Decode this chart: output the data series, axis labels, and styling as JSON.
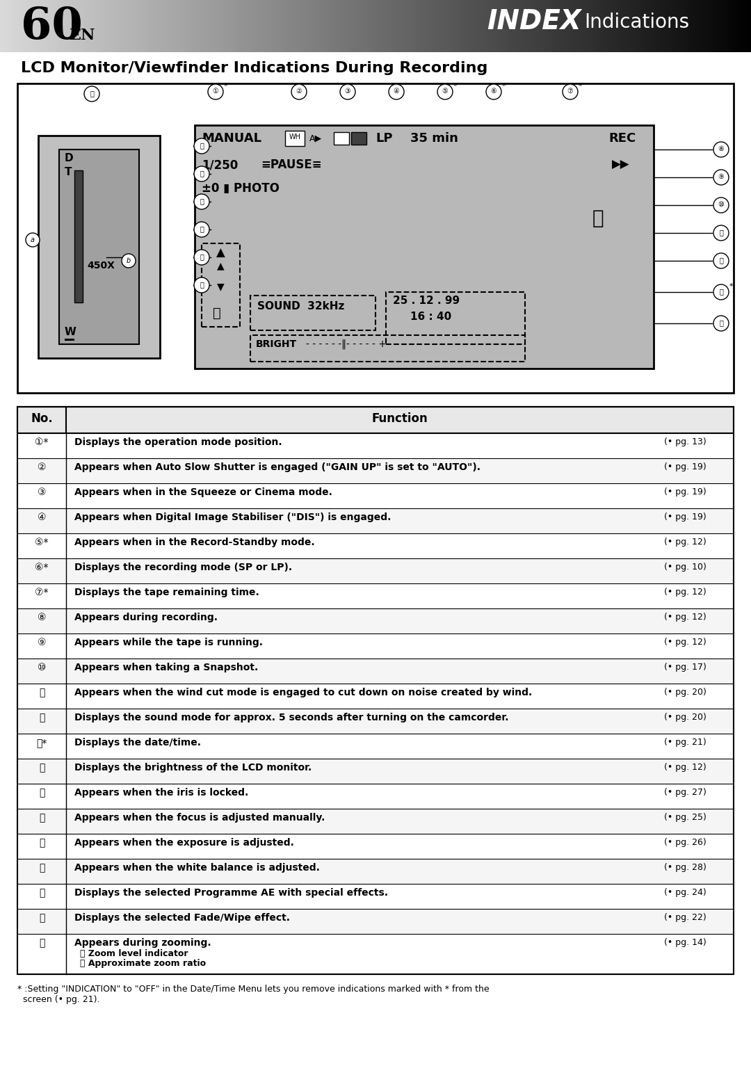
{
  "page_number": "60",
  "page_suffix": "EN",
  "header_title": "INDEX",
  "header_subtitle": "Indications",
  "section_title": "LCD Monitor/Viewfinder Indications During Recording",
  "table_headers": [
    "No.",
    "Function"
  ],
  "table_rows": [
    {
      "no": "①*",
      "function": "Displays the operation mode position.",
      "page": "pg. 13"
    },
    {
      "no": "②",
      "function": "Appears when Auto Slow Shutter is engaged (\"GAIN UP\" is set to \"AUTO\").",
      "page": "pg. 19"
    },
    {
      "no": "③",
      "function": "Appears when in the Squeeze or Cinema mode.",
      "page": "pg. 19"
    },
    {
      "no": "④",
      "function": "Appears when Digital Image Stabiliser (\"DIS\") is engaged.",
      "page": "pg. 19"
    },
    {
      "no": "⑤*",
      "function": "Appears when in the Record-Standby mode.",
      "page": "pg. 12"
    },
    {
      "no": "⑥*",
      "function": "Displays the recording mode (SP or LP).",
      "page": "pg. 10"
    },
    {
      "no": "⑦*",
      "function": "Displays the tape remaining time.",
      "page": "pg. 12"
    },
    {
      "no": "⑧",
      "function": "Appears during recording.",
      "page": "pg. 12"
    },
    {
      "no": "⑨",
      "function": "Appears while the tape is running.",
      "page": "pg. 12"
    },
    {
      "no": "⑩",
      "function": "Appears when taking a Snapshot.",
      "page": "pg. 17"
    },
    {
      "no": "⑪",
      "function": "Appears when the wind cut mode is engaged to cut down on noise created by wind.",
      "page": "pg. 20"
    },
    {
      "no": "⑫",
      "function": "Displays the sound mode for approx. 5 seconds after turning on the camcorder.",
      "page": "pg. 20"
    },
    {
      "no": "⑬*",
      "function": "Displays the date/time.",
      "page": "pg. 21"
    },
    {
      "no": "⑭",
      "function": "Displays the brightness of the LCD monitor.",
      "page": "pg. 12"
    },
    {
      "no": "⑮",
      "function": "Appears when the iris is locked.",
      "page": "pg. 27"
    },
    {
      "no": "⑯",
      "function": "Appears when the focus is adjusted manually.",
      "page": "pg. 25"
    },
    {
      "no": "⑰",
      "function": "Appears when the exposure is adjusted.",
      "page": "pg. 26"
    },
    {
      "no": "⑱",
      "function": "Appears when the white balance is adjusted.",
      "page": "pg. 28"
    },
    {
      "no": "⑲",
      "function": "Displays the selected Programme AE with special effects.",
      "page": "pg. 24"
    },
    {
      "no": "⑳",
      "function": "Displays the selected Fade/Wipe effect.",
      "page": "pg. 22"
    },
    {
      "no": "㉑",
      "function": "Appears during zooming.\nⒶ Zoom level indicator\nⒷ Approximate zoom ratio",
      "page": "pg. 14"
    }
  ],
  "footnote": "* :Setting \"INDICATION\" to \"OFF\" in the Date/Time Menu lets you remove indications marked with * from the\n  screen (• pg. 21).",
  "bg_color": "#ffffff",
  "header_bg_left": "#d0d0d0",
  "header_bg_right": "#1a1a1a",
  "table_header_bg": "#e8e8e8",
  "table_border": "#000000",
  "diagram_bg": "#c8c8c8",
  "diagram_border": "#000000"
}
